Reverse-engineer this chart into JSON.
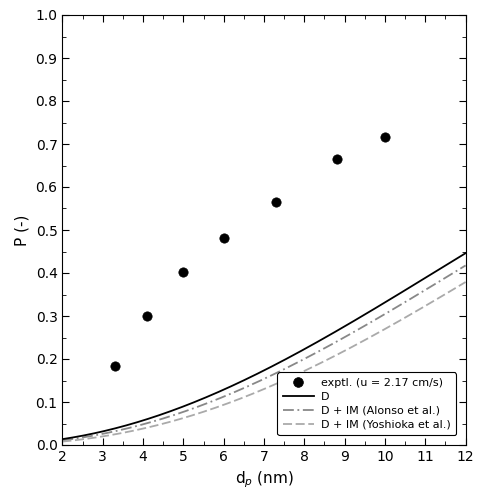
{
  "exp_x": [
    3.3,
    4.1,
    5.0,
    6.0,
    7.3,
    8.8,
    10.0
  ],
  "exp_y": [
    0.183,
    0.3,
    0.402,
    0.482,
    0.566,
    0.664,
    0.716
  ],
  "xlim": [
    2,
    12
  ],
  "ylim": [
    0.0,
    1.0
  ],
  "xlabel": "d$_p$ (nm)",
  "ylabel": "P (-)",
  "xticks": [
    2,
    3,
    4,
    5,
    6,
    7,
    8,
    9,
    10,
    11,
    12
  ],
  "yticks": [
    0.0,
    0.1,
    0.2,
    0.3,
    0.4,
    0.5,
    0.6,
    0.7,
    0.8,
    0.9,
    1.0
  ],
  "legend_labels": [
    "exptl. (u = 2.17 cm/s)",
    "D",
    "D + IM (Alonso et al.)",
    "D + IM (Yoshioka et al.)"
  ],
  "line_D_color": "#000000",
  "line_alonso_color": "#888888",
  "line_yoshioka_color": "#aaaaaa",
  "exp_color": "#000000",
  "background_color": "#ffffff",
  "curve_D_a": 0.0032,
  "curve_D_b": 2.1,
  "curve_alonso_a": 0.0024,
  "curve_alonso_b": 2.18,
  "curve_yoshioka_a": 0.00165,
  "curve_yoshioka_b": 2.28
}
